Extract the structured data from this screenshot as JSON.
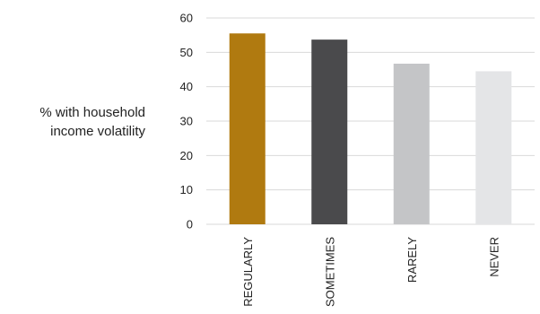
{
  "chart_data": {
    "type": "bar",
    "title": "",
    "ylabel_lines": [
      "% with household",
      "income volatility"
    ],
    "xlabel": "",
    "categories": [
      "REGULARLY",
      "SOMETIMES",
      "RARELY",
      "NEVER"
    ],
    "values": [
      55.5,
      53.7,
      46.7,
      44.5
    ],
    "colors": [
      "#B07A10",
      "#4A4A4C",
      "#C4C5C7",
      "#E4E5E7"
    ],
    "ylim": [
      0,
      60
    ],
    "yticks": [
      0,
      10,
      20,
      30,
      40,
      50,
      60
    ],
    "grid": true,
    "gridColor": "#d9d9d9",
    "legend": "none"
  }
}
